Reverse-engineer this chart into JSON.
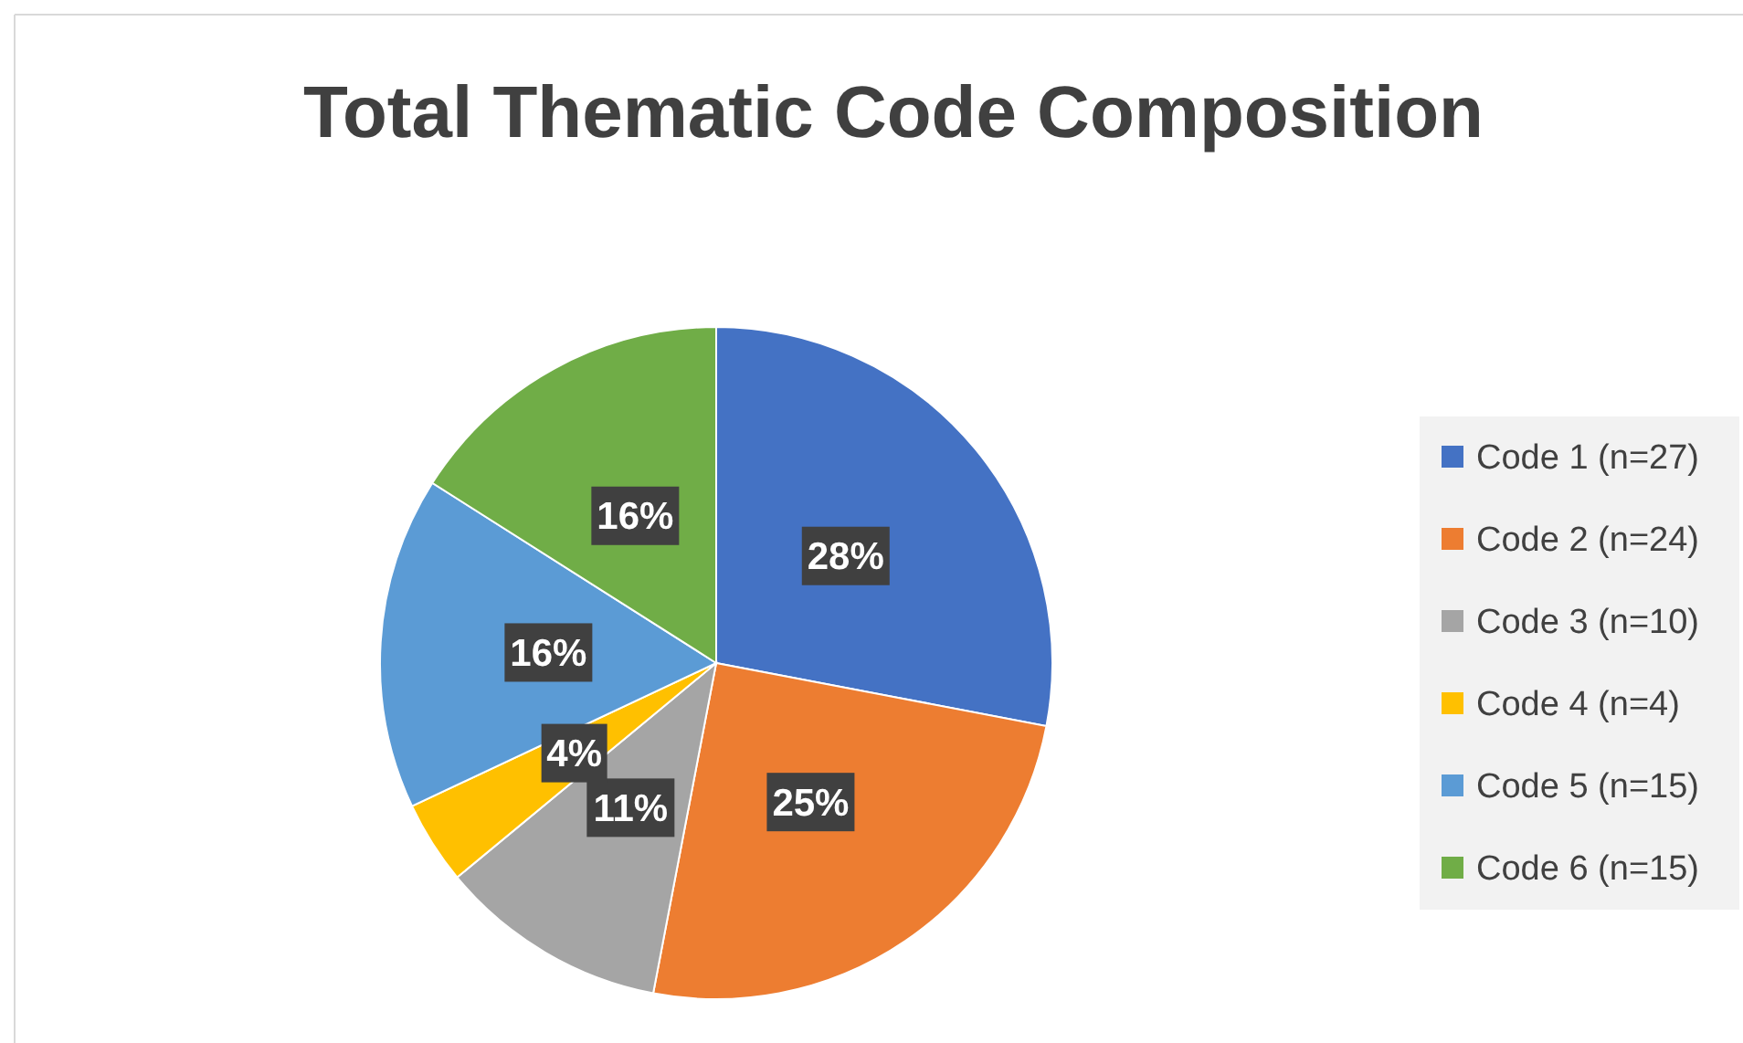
{
  "chart_data": {
    "type": "pie",
    "title": "Total Thematic Code Composition",
    "categories": [
      "Code 1 (n=27)",
      "Code 2 (n=24)",
      "Code 3 (n=10)",
      "Code 4 (n=4)",
      "Code 5 (n=15)",
      "Code 6 (n=15)"
    ],
    "values": [
      28,
      25,
      11,
      4,
      16,
      16
    ],
    "colors": [
      "#4472c4",
      "#ed7d31",
      "#a5a5a5",
      "#ffc000",
      "#5b9bd5",
      "#70ad47"
    ],
    "value_labels": [
      "28%",
      "25%",
      "11%",
      "4%",
      "16%",
      "16%"
    ],
    "legend": "right"
  }
}
